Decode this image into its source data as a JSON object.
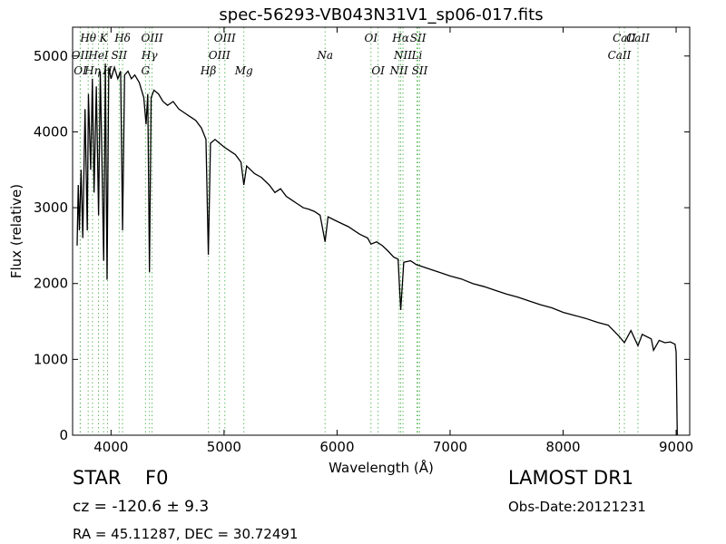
{
  "chart_data": {
    "type": "line",
    "title": "spec-56293-VB043N31V1_sp06-017.fits",
    "x_label": "Wavelength (Å)",
    "y_label": "Flux (relative)",
    "xlim": [
      3660,
      9120
    ],
    "ylim": [
      0,
      5380
    ],
    "xticks": [
      4000,
      5000,
      6000,
      7000,
      8000,
      9000
    ],
    "yticks": [
      0,
      1000,
      2000,
      3000,
      4000,
      5000
    ],
    "grid": false,
    "line_color": "#66bb66",
    "x": [
      3700,
      3710,
      3720,
      3735,
      3750,
      3770,
      3790,
      3800,
      3820,
      3835,
      3850,
      3870,
      3890,
      3905,
      3920,
      3935,
      3950,
      3965,
      3980,
      4000,
      4030,
      4060,
      4085,
      4102,
      4120,
      4150,
      4180,
      4210,
      4250,
      4290,
      4310,
      4325,
      4340,
      4355,
      4380,
      4420,
      4460,
      4500,
      4550,
      4600,
      4650,
      4700,
      4750,
      4800,
      4840,
      4861,
      4880,
      4920,
      4960,
      5000,
      5050,
      5100,
      5150,
      5175,
      5200,
      5270,
      5330,
      5400,
      5450,
      5500,
      5550,
      5600,
      5650,
      5700,
      5750,
      5800,
      5850,
      5894,
      5920,
      6000,
      6100,
      6200,
      6270,
      6300,
      6350,
      6400,
      6450,
      6500,
      6540,
      6563,
      6590,
      6650,
      6700,
      6800,
      6900,
      7000,
      7100,
      7200,
      7300,
      7400,
      7500,
      7600,
      7700,
      7800,
      7900,
      8000,
      8100,
      8200,
      8300,
      8400,
      8498,
      8542,
      8600,
      8662,
      8700,
      8780,
      8800,
      8850,
      8900,
      8950,
      8990,
      9000,
      9010
    ],
    "series": [
      {
        "name": "flux",
        "color": "#000000",
        "values": [
          2500,
          3300,
          2700,
          3500,
          2600,
          4300,
          2700,
          4500,
          3500,
          4700,
          3200,
          4600,
          2900,
          4800,
          3600,
          2300,
          4900,
          2050,
          4850,
          4700,
          4850,
          4700,
          4800,
          2700,
          4750,
          4800,
          4700,
          4750,
          4650,
          4450,
          4100,
          4500,
          2150,
          4450,
          4550,
          4500,
          4400,
          4350,
          4400,
          4300,
          4250,
          4200,
          4150,
          4050,
          3900,
          2380,
          3850,
          3900,
          3850,
          3800,
          3750,
          3700,
          3600,
          3300,
          3550,
          3450,
          3400,
          3300,
          3200,
          3250,
          3150,
          3100,
          3050,
          3000,
          2980,
          2950,
          2900,
          2550,
          2880,
          2820,
          2750,
          2650,
          2600,
          2520,
          2550,
          2500,
          2430,
          2350,
          2320,
          1650,
          2280,
          2300,
          2250,
          2200,
          2150,
          2100,
          2060,
          2000,
          1960,
          1910,
          1860,
          1820,
          1770,
          1720,
          1680,
          1620,
          1580,
          1540,
          1490,
          1450,
          1300,
          1220,
          1380,
          1180,
          1330,
          1270,
          1120,
          1250,
          1220,
          1230,
          1200,
          1100,
          0
        ]
      }
    ],
    "spectral_lines": [
      {
        "wavelength": 3798,
        "label": "Hθ"
      },
      {
        "wavelength": 3727,
        "label": "OII"
      },
      {
        "wavelength": 3729,
        "label": "OI"
      },
      {
        "wavelength": 3934,
        "label": "K"
      },
      {
        "wavelength": 3889,
        "label": "HeI"
      },
      {
        "wavelength": 3836,
        "label": "Hη"
      },
      {
        "wavelength": 4102,
        "label": "Hδ"
      },
      {
        "wavelength": 4072,
        "label": "SII"
      },
      {
        "wavelength": 3969,
        "label": "H"
      },
      {
        "wavelength": 4363,
        "label": "OIII"
      },
      {
        "wavelength": 4340,
        "label": "Hγ"
      },
      {
        "wavelength": 4305,
        "label": "G"
      },
      {
        "wavelength": 5007,
        "label": "OIII"
      },
      {
        "wavelength": 4959,
        "label": "OIII"
      },
      {
        "wavelength": 4861,
        "label": "Hβ"
      },
      {
        "wavelength": 6300,
        "label": "OI"
      },
      {
        "wavelength": 5894,
        "label": "Na"
      },
      {
        "wavelength": 5175,
        "label": "Mg"
      },
      {
        "wavelength": 6563,
        "label": "Hα"
      },
      {
        "wavelength": 6583,
        "label": "NII"
      },
      {
        "wavelength": 6363,
        "label": "OI"
      },
      {
        "wavelength": 6716,
        "label": "SII"
      },
      {
        "wavelength": 6707,
        "label": "Li"
      },
      {
        "wavelength": 6548,
        "label": "NII"
      },
      {
        "wavelength": 8542,
        "label": "CaII"
      },
      {
        "wavelength": 8498,
        "label": "CaII"
      },
      {
        "wavelength": 6731,
        "label": "SII"
      },
      {
        "wavelength": 8662,
        "label": "CaII"
      }
    ],
    "object_class": "STAR",
    "subclass": "F0",
    "redshift": "cz = -120.6 ± 9.3",
    "coordinates": "RA = 45.11287, DEC = 30.72491",
    "survey": "LAMOST DR1",
    "obs_date": "Obs-Date:20121231"
  }
}
